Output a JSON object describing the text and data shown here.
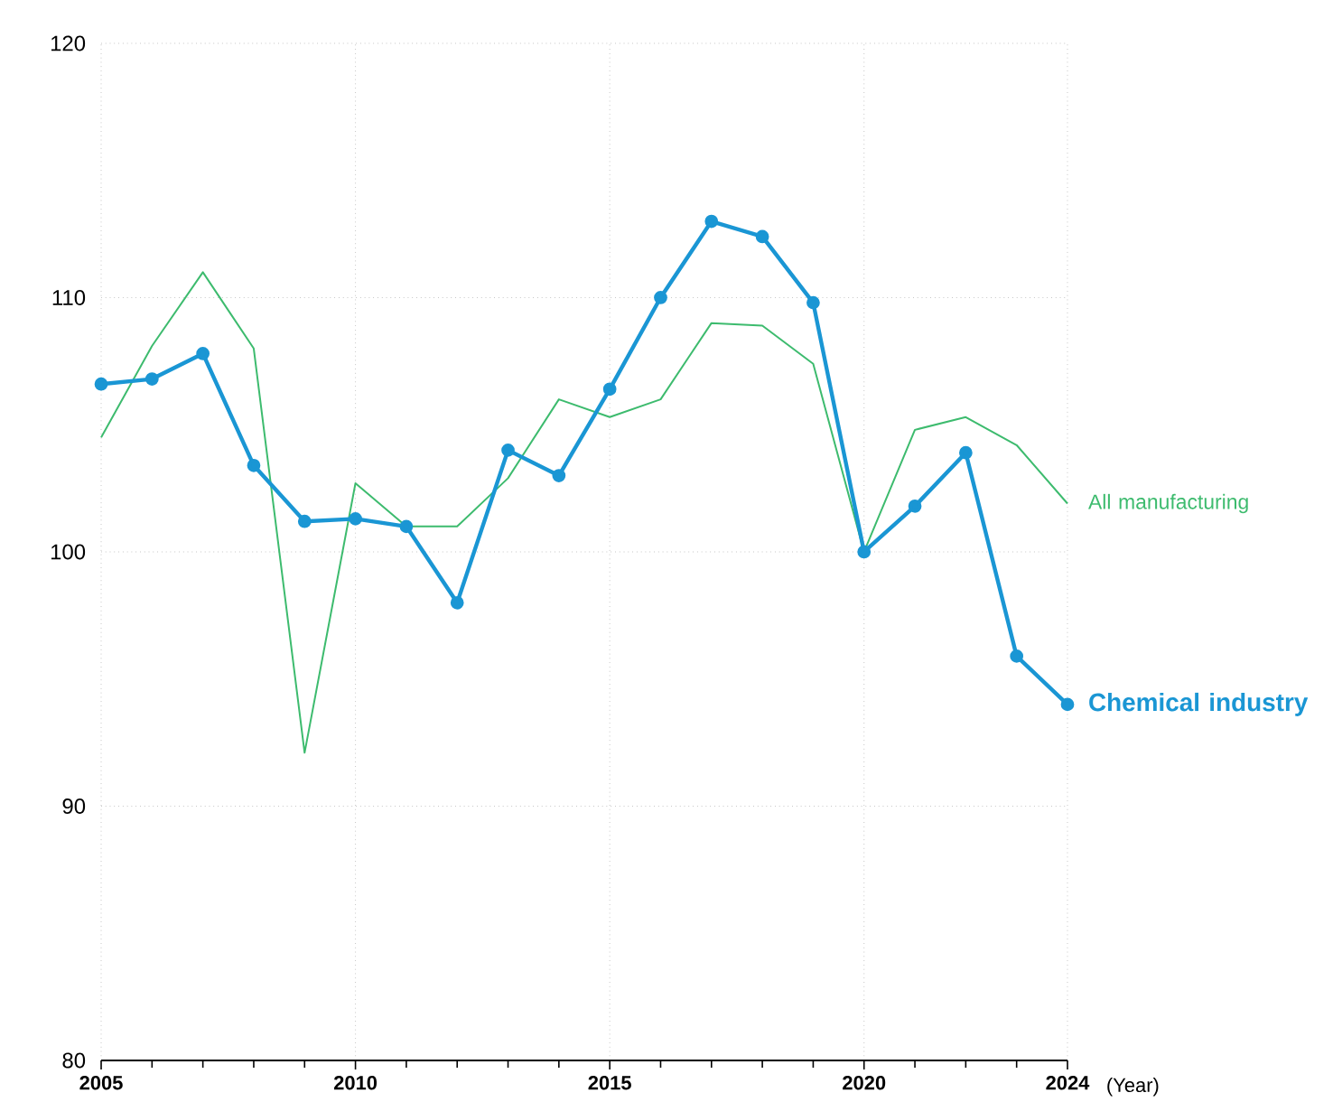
{
  "chart_data": {
    "type": "line",
    "xlabel": "(Year)",
    "x": [
      2005,
      2006,
      2007,
      2008,
      2009,
      2010,
      2011,
      2012,
      2013,
      2014,
      2015,
      2016,
      2017,
      2018,
      2019,
      2020,
      2021,
      2022,
      2023,
      2024
    ],
    "series": [
      {
        "name": "All manufacturing",
        "color": "#3dbb6e",
        "marker": "none",
        "values": [
          104.5,
          108.1,
          111.0,
          108.0,
          92.1,
          102.7,
          101.0,
          101.0,
          102.9,
          106.0,
          105.3,
          106.0,
          109.0,
          108.9,
          107.4,
          100.0,
          104.8,
          105.3,
          104.2,
          101.9
        ]
      },
      {
        "name": "Chemical industry",
        "color": "#1a96d4",
        "marker": "circle",
        "values": [
          106.6,
          106.8,
          107.8,
          103.4,
          101.2,
          101.3,
          101.0,
          98.0,
          104.0,
          103.0,
          106.4,
          110.0,
          113.0,
          112.4,
          109.8,
          100.0,
          101.8,
          103.9,
          95.9,
          94.0
        ]
      }
    ],
    "xlim": [
      2005,
      2024
    ],
    "xticks": [
      2005,
      {
        "value": 2006,
        "label": null
      },
      {
        "value": 2007,
        "label": null
      },
      {
        "value": 2008,
        "label": null
      },
      {
        "value": 2009,
        "label": null
      },
      2010,
      {
        "value": 2011,
        "label": null
      },
      {
        "value": 2012,
        "label": null
      },
      {
        "value": 2013,
        "label": null
      },
      {
        "value": 2014,
        "label": null
      },
      2015,
      {
        "value": 2016,
        "label": null
      },
      {
        "value": 2017,
        "label": null
      },
      {
        "value": 2018,
        "label": null
      },
      {
        "value": 2019,
        "label": null
      },
      2020,
      {
        "value": 2021,
        "label": null
      },
      {
        "value": 2022,
        "label": null
      },
      {
        "value": 2023,
        "label": null
      },
      2024
    ],
    "ylim": [
      80,
      120
    ],
    "yticks": [
      80,
      90,
      100,
      110,
      120
    ],
    "grid": true,
    "legend": false,
    "line_style": "solid"
  }
}
